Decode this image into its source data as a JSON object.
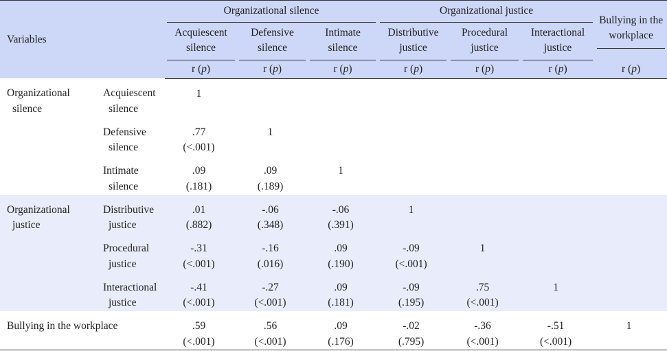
{
  "header": {
    "variables": "Variables",
    "groups": [
      {
        "label": "Organizational silence",
        "columns": [
          "Acquiescent silence",
          "Defensive silence",
          "Intimate silence"
        ]
      },
      {
        "label": "Organizational justice",
        "columns": [
          "Distributive justice",
          "Procedural justice",
          "Interactional justice"
        ]
      }
    ],
    "bullying": "Bullying in the workplace",
    "stat": [
      "r (",
      "p",
      ")"
    ]
  },
  "rows": [
    {
      "label": "Organizational silence",
      "items": [
        {
          "label": "Acquiescent silence",
          "cells": [
            {
              "r": "1"
            }
          ]
        },
        {
          "label": "Defensive silence",
          "cells": [
            {
              "r": ".77",
              "p": "(<.001)"
            },
            {
              "r": "1"
            }
          ]
        },
        {
          "label": "Intimate silence",
          "cells": [
            {
              "r": ".09",
              "p": "(.181)"
            },
            {
              "r": ".09",
              "p": "(.189)"
            },
            {
              "r": "1"
            }
          ]
        }
      ]
    },
    {
      "label": "Organizational justice",
      "items": [
        {
          "label": "Distributive justice",
          "cells": [
            {
              "r": ".01",
              "p": "(.882)"
            },
            {
              "r": "-.06",
              "p": "(.348)"
            },
            {
              "r": "-.06",
              "p": "(.391)"
            },
            {
              "r": "1"
            }
          ]
        },
        {
          "label": "Procedural justice",
          "cells": [
            {
              "r": "-.31",
              "p": "(<.001)"
            },
            {
              "r": "-.16",
              "p": "(.016)"
            },
            {
              "r": ".09",
              "p": "(.190)"
            },
            {
              "r": "-.09",
              "p": "(<.001)"
            },
            {
              "r": "1"
            }
          ]
        },
        {
          "label": "Interactional justice",
          "cells": [
            {
              "r": "-.41",
              "p": "(<.001)"
            },
            {
              "r": "-.27",
              "p": "(<.001)"
            },
            {
              "r": ".09",
              "p": "(.181)"
            },
            {
              "r": "-.09",
              "p": "(.195)"
            },
            {
              "r": ".75",
              "p": "(<.001)"
            },
            {
              "r": "1"
            }
          ]
        }
      ]
    },
    {
      "label": "Bullying in the workplace",
      "items": [
        {
          "cells": [
            {
              "r": ".59",
              "p": "(<.001)"
            },
            {
              "r": ".56",
              "p": "(<.001)"
            },
            {
              "r": ".09",
              "p": "(.176)"
            },
            {
              "r": "-.02",
              "p": "(.795)"
            },
            {
              "r": "-.36",
              "p": "(<.001)"
            },
            {
              "r": "-.51",
              "p": "(<.001)"
            },
            {
              "r": "1"
            }
          ]
        }
      ]
    }
  ]
}
